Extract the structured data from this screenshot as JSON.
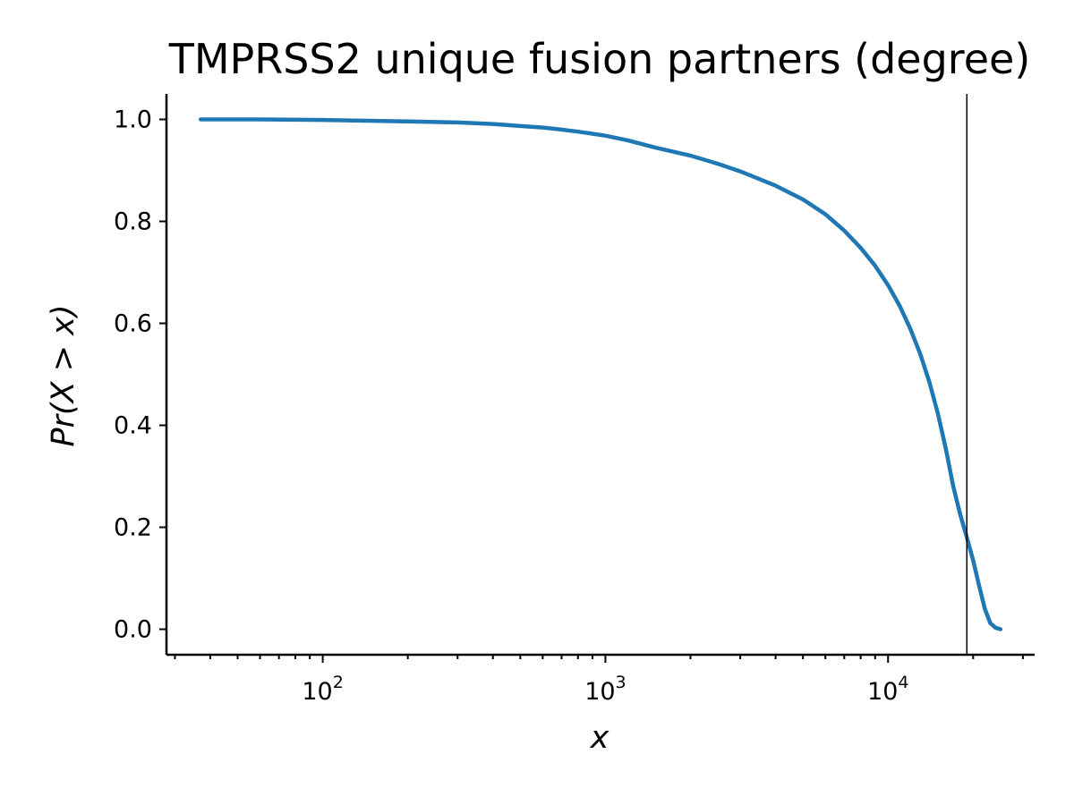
{
  "chart_data": {
    "type": "line",
    "title": "TMPRSS2 unique fusion partners (degree)",
    "xlabel": "x",
    "ylabel": "Pr(X > x)",
    "xscale": "log",
    "xlim": [
      28,
      33000
    ],
    "ylim": [
      -0.05,
      1.05
    ],
    "grid": false,
    "legend": "none",
    "x_ticks": [
      {
        "value": 100,
        "base": "10",
        "exp": "2"
      },
      {
        "value": 1000,
        "base": "10",
        "exp": "3"
      },
      {
        "value": 10000,
        "base": "10",
        "exp": "4"
      }
    ],
    "y_ticks": [
      "0.0",
      "0.2",
      "0.4",
      "0.6",
      "0.8",
      "1.0"
    ],
    "series": [
      {
        "color": "#1f77b4",
        "x": [
          37,
          60,
          100,
          200,
          300,
          400,
          500,
          600,
          700,
          800,
          900,
          1000,
          1200,
          1500,
          2000,
          2500,
          3000,
          4000,
          5000,
          6000,
          7000,
          8000,
          9000,
          10000,
          11000,
          12000,
          13000,
          14000,
          15000,
          16000,
          17000,
          18000,
          19000,
          20000,
          21000,
          22000,
          23000,
          24000,
          25000
        ],
        "y": [
          1.0,
          1.0,
          0.999,
          0.996,
          0.994,
          0.991,
          0.987,
          0.984,
          0.98,
          0.976,
          0.972,
          0.968,
          0.959,
          0.945,
          0.929,
          0.913,
          0.898,
          0.87,
          0.843,
          0.814,
          0.782,
          0.748,
          0.713,
          0.675,
          0.634,
          0.589,
          0.54,
          0.485,
          0.423,
          0.355,
          0.281,
          0.225,
          0.18,
          0.135,
          0.085,
          0.04,
          0.012,
          0.003,
          0.0
        ]
      }
    ],
    "reference_line": {
      "x": 19000,
      "color": "#000000"
    }
  }
}
